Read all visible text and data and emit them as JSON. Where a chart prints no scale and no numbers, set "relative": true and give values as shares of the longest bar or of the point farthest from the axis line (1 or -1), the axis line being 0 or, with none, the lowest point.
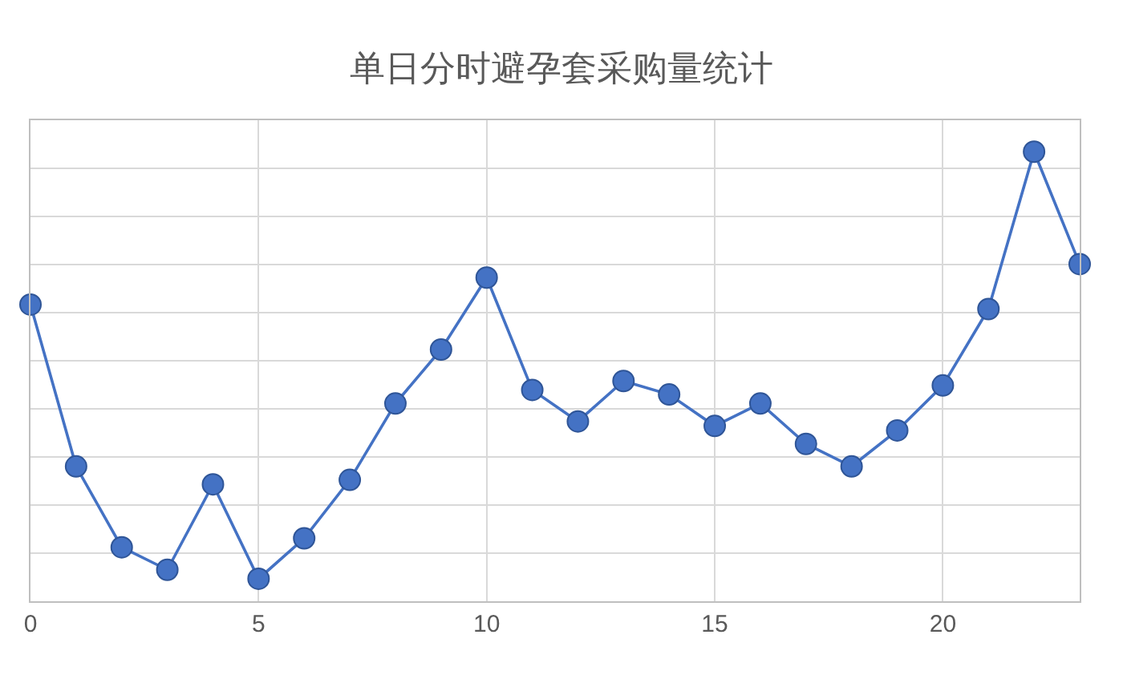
{
  "chart_data": {
    "type": "line",
    "title": "单日分时避孕套采购量统计",
    "x": [
      0,
      1,
      2,
      3,
      4,
      5,
      6,
      7,
      8,
      9,
      10,
      11,
      12,
      13,
      14,
      15,
      16,
      17,
      18,
      19,
      20,
      21,
      22,
      23
    ],
    "values": [
      0.66,
      0.3,
      0.12,
      0.07,
      0.26,
      0.05,
      0.14,
      0.27,
      0.44,
      0.56,
      0.72,
      0.47,
      0.4,
      0.49,
      0.46,
      0.39,
      0.44,
      0.35,
      0.3,
      0.38,
      0.48,
      0.65,
      1,
      0.75
    ],
    "color": "#4472c4",
    "relative": true,
    "xlim": [
      0,
      23
    ],
    "xticks": [
      0,
      5,
      10,
      15,
      20
    ],
    "grid": true,
    "marker": "circle",
    "line_style": "solid"
  }
}
